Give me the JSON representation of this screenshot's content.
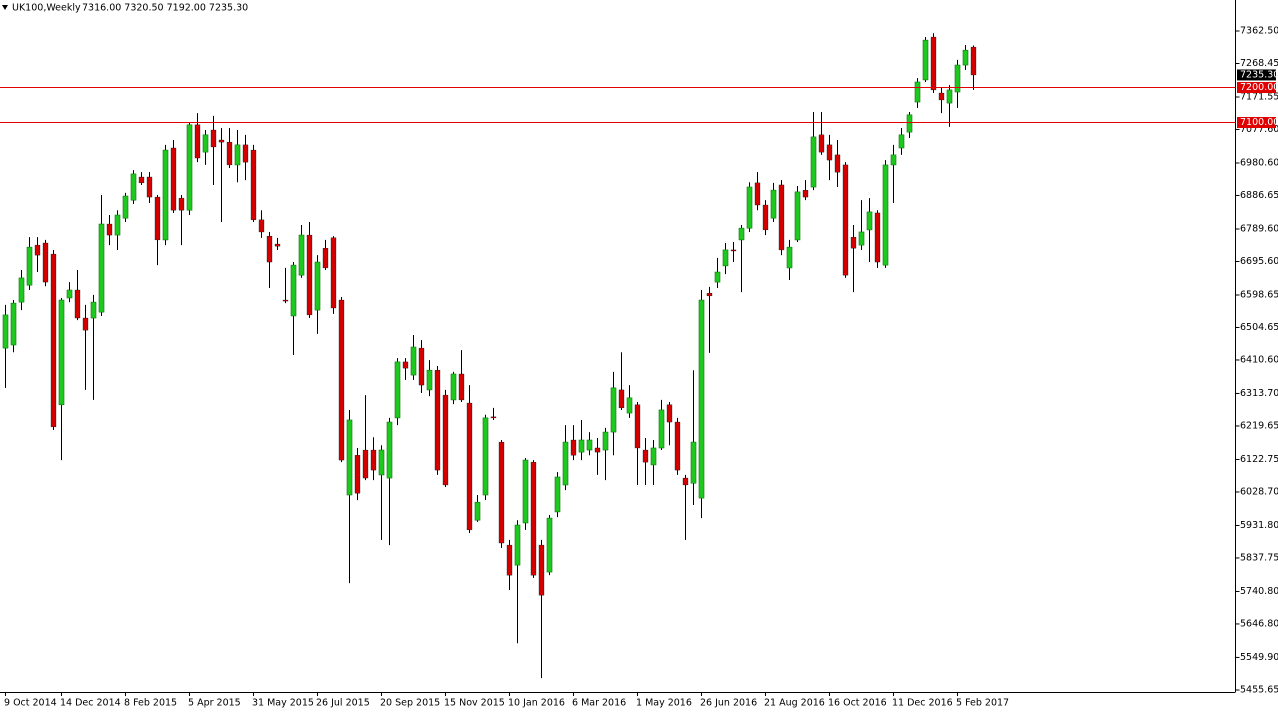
{
  "chart_data": {
    "type": "candlestick",
    "symbol": "UK100,Weekly",
    "ohlc_text": "7316.00 7320.50 7192.00 7235.30",
    "up_color": "#1ec81e",
    "down_color": "#d40000",
    "categories": [
      "9 Oct 2014",
      null,
      null,
      null,
      null,
      null,
      null,
      "14 Dec 2014",
      null,
      null,
      null,
      null,
      null,
      null,
      null,
      "8 Feb 2015",
      null,
      null,
      null,
      null,
      null,
      null,
      null,
      "5 Apr 2015",
      null,
      null,
      null,
      null,
      null,
      null,
      null,
      "31 May 2015",
      null,
      null,
      null,
      null,
      null,
      null,
      null,
      "26 Jul 2015",
      null,
      null,
      null,
      null,
      null,
      null,
      null,
      "20 Sep 2015",
      null,
      null,
      null,
      null,
      null,
      null,
      null,
      "15 Nov 2015",
      null,
      null,
      null,
      null,
      null,
      null,
      null,
      "10 Jan 2016",
      null,
      null,
      null,
      null,
      null,
      null,
      null,
      "6 Mar 2016",
      null,
      null,
      null,
      null,
      null,
      null,
      null,
      "1 May 2016",
      null,
      null,
      null,
      null,
      null,
      null,
      null,
      "26 Jun 2016",
      null,
      null,
      null,
      null,
      null,
      null,
      null,
      "21 Aug 2016",
      null,
      null,
      null,
      null,
      null,
      null,
      null,
      "16 Oct 2016",
      null,
      null,
      null,
      null,
      null,
      null,
      null,
      "11 Dec 2016",
      null,
      null,
      null,
      null,
      null,
      null,
      null,
      "5 Feb 2017",
      null,
      null
    ],
    "open": [
      6445,
      6454,
      6578,
      6627,
      6743,
      6749,
      6717,
      6281,
      6590,
      6613,
      6532,
      6532,
      6549,
      6804,
      6772,
      6821,
      6873,
      6940,
      6940,
      6882,
      6758,
      7024,
      6879,
      6844,
      7091,
      7012,
      7076,
      7047,
      7041,
      6975,
      7033,
      7018,
      6816,
      6769,
      6746,
      6584,
      6538,
      6656,
      6772,
      6555,
      6734,
      6764,
      6584,
      6020,
      6135,
      6150,
      6150,
      6078,
      6069,
      6243,
      6405,
      6367,
      6445,
      6324,
      6381,
      6309,
      6295,
      6370,
      6286,
      5947,
      6020,
      6246,
      6173,
      5875,
      5817,
      5939,
      6115,
      5875,
      5797,
      5971,
      6049,
      6179,
      6144,
      6150,
      6156,
      6150,
      6202,
      6324,
      6257,
      6281,
      6150,
      6107,
      6156,
      6281,
      6231,
      6069,
      6054,
      6011,
      6604,
      6636,
      6683,
      6729,
      6758,
      6792,
      6923,
      6859,
      6821,
      6917,
      6677,
      6758,
      6902,
      6911,
      7062,
      7033,
      7004,
      6975,
      6766,
      6743,
      6787,
      6836,
      6685,
      6975,
      7024,
      7070,
      7157,
      7221,
      7345,
      7183,
      7154,
      7186,
      7264,
      7316
    ],
    "high": [
      6570,
      6584,
      6671,
      6766,
      6766,
      6758,
      6729,
      6590,
      6636,
      6671,
      6570,
      6599,
      6888,
      6830,
      6844,
      6894,
      6960,
      6954,
      6954,
      6888,
      7033,
      7047,
      6888,
      7099,
      7125,
      7076,
      7117,
      7082,
      7082,
      7076,
      7062,
      7033,
      6844,
      6781,
      6764,
      6677,
      6694,
      6801,
      6810,
      6714,
      6758,
      6769,
      6593,
      6266,
      6156,
      6309,
      6187,
      6164,
      6243,
      6416,
      6416,
      6483,
      6468,
      6410,
      6393,
      6324,
      6376,
      6439,
      6338,
      6020,
      6252,
      6272,
      6179,
      5890,
      5947,
      6127,
      6121,
      5890,
      5962,
      6086,
      6222,
      6222,
      6237,
      6202,
      6185,
      6214,
      6376,
      6433,
      6338,
      6289,
      6185,
      6179,
      6295,
      6289,
      6243,
      6078,
      6381,
      6613,
      6622,
      6706,
      6749,
      6752,
      6801,
      6925,
      6954,
      6873,
      6923,
      6931,
      6758,
      6914,
      6931,
      7128,
      7128,
      7062,
      7047,
      6983,
      6801,
      6873,
      6879,
      6844,
      6989,
      7033,
      7082,
      7128,
      7226,
      7345,
      7356,
      7200,
      7206,
      7279,
      7322,
      7320.5
    ],
    "low": [
      6330,
      6433,
      6555,
      6613,
      6665,
      6624,
      6208,
      6121,
      6578,
      6526,
      6324,
      6295,
      6538,
      6743,
      6729,
      6810,
      6862,
      6917,
      6865,
      6685,
      6743,
      6836,
      6743,
      6830,
      6983,
      6975,
      6917,
      6810,
      6966,
      6925,
      6931,
      6810,
      6764,
      6619,
      6729,
      6575,
      6425,
      6648,
      6532,
      6486,
      6671,
      6544,
      6115,
      5765,
      6005,
      6063,
      6063,
      5890,
      5875,
      6222,
      6353,
      6353,
      6315,
      6306,
      6078,
      6043,
      6283,
      6289,
      5910,
      5942,
      6005,
      6237,
      5867,
      5745,
      5591,
      5919,
      5780,
      5490,
      5788,
      5956,
      6034,
      6121,
      6121,
      6135,
      6078,
      6063,
      6135,
      6266,
      6243,
      6049,
      6049,
      6049,
      6150,
      6164,
      6078,
      5890,
      5991,
      5953,
      6431,
      6619,
      6659,
      6694,
      6607,
      6781,
      6844,
      6772,
      6810,
      6714,
      6642,
      6752,
      6873,
      6902,
      7004,
      6931,
      6911,
      6648,
      6607,
      6729,
      6694,
      6677,
      6677,
      6865,
      7004,
      7053,
      7140,
      7215,
      7183,
      7125,
      7085,
      7140,
      7250,
      7192
    ],
    "close": [
      6541,
      6575,
      6648,
      6737,
      6714,
      6636,
      6217,
      6584,
      6613,
      6532,
      6497,
      6578,
      6804,
      6772,
      6830,
      6885,
      6949,
      6923,
      6882,
      6758,
      7018,
      6844,
      6844,
      7091,
      6995,
      7062,
      7027,
      7041,
      6975,
      7033,
      6983,
      6816,
      6781,
      6694,
      6740,
      6581,
      6685,
      6772,
      6541,
      6694,
      6677,
      6561,
      6121,
      6237,
      6025,
      6069,
      6092,
      6150,
      6231,
      6405,
      6387,
      6448,
      6338,
      6381,
      6092,
      6049,
      6370,
      6295,
      5919,
      5999,
      6243,
      6243,
      5881,
      5788,
      5933,
      6121,
      5788,
      5730,
      5953,
      6072,
      6173,
      6135,
      6179,
      6179,
      6144,
      6202,
      6330,
      6272,
      6301,
      6156,
      6115,
      6156,
      6266,
      6231,
      6092,
      6049,
      6173,
      6584,
      6596,
      6665,
      6729,
      6726,
      6792,
      6911,
      6859,
      6787,
      6902,
      6729,
      6737,
      6897,
      6882,
      7056,
      7012,
      6989,
      6954,
      6656,
      6734,
      6781,
      6839,
      6694,
      6975,
      7004,
      7062,
      7120,
      7215,
      7336,
      7192,
      7163,
      7192,
      7264,
      7307,
      7235.3
    ],
    "ylim": [
      5449.9,
      7452.2
    ],
    "yticks": [
      {
        "value": 7362.5,
        "label": "7362.50"
      },
      {
        "value": 7268.45,
        "label": "7268.45"
      },
      {
        "value": 7171.55,
        "label": "7171.55"
      },
      {
        "value": 7077.6,
        "label": "7077.60"
      },
      {
        "value": 6980.6,
        "label": "6980.60"
      },
      {
        "value": 6886.65,
        "label": "6886.65"
      },
      {
        "value": 6789.6,
        "label": "6789.60"
      },
      {
        "value": 6695.6,
        "label": "6695.60"
      },
      {
        "value": 6598.65,
        "label": "6598.65"
      },
      {
        "value": 6504.65,
        "label": "6504.65"
      },
      {
        "value": 6410.6,
        "label": "6410.60"
      },
      {
        "value": 6313.7,
        "label": "6313.70"
      },
      {
        "value": 6219.65,
        "label": "6219.65"
      },
      {
        "value": 6122.75,
        "label": "6122.75"
      },
      {
        "value": 6028.7,
        "label": "6028.70"
      },
      {
        "value": 5931.8,
        "label": "5931.80"
      },
      {
        "value": 5837.75,
        "label": "5837.75"
      },
      {
        "value": 5740.8,
        "label": "5740.80"
      },
      {
        "value": 5646.8,
        "label": "5646.80"
      },
      {
        "value": 5549.9,
        "label": "5549.90"
      },
      {
        "value": 5455.65,
        "label": "5455.65"
      }
    ],
    "hlines": [
      {
        "value": 7200,
        "label": "7200.00",
        "color": "#e00000"
      },
      {
        "value": 7100,
        "label": "7100.00",
        "color": "#e00000"
      }
    ],
    "last_price": {
      "value": 7235.3,
      "label": "7235.30"
    }
  }
}
